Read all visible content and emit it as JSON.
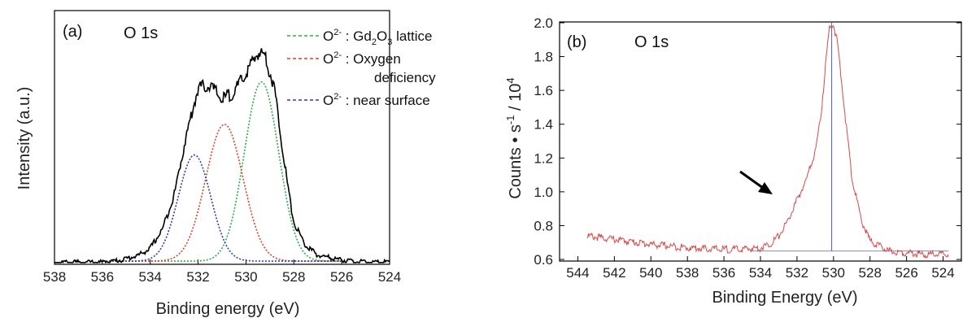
{
  "chart_data": [
    {
      "type": "line",
      "panel": "(a)",
      "title": "O 1s",
      "xlabel": "Binding energy (eV)",
      "ylabel": "Intensity (a.u.)",
      "xlim": [
        538,
        524
      ],
      "x_ticks": [
        "538",
        "536",
        "534",
        "532",
        "530",
        "528",
        "526",
        "524"
      ],
      "y_ticks": [],
      "grid": false,
      "legend_position": "top-right",
      "series": [
        {
          "name": "",
          "color": "#000000",
          "style": "solid",
          "x": [
            538,
            536,
            535.2,
            534.5,
            534,
            533.5,
            533,
            532.5,
            532,
            531.5,
            531,
            530.5,
            530,
            529.5,
            529.2,
            528.8,
            528.5,
            528.2,
            528,
            527.5,
            527,
            526,
            525,
            524
          ],
          "y": [
            0.01,
            0.01,
            0.02,
            0.04,
            0.07,
            0.15,
            0.3,
            0.55,
            0.76,
            0.77,
            0.71,
            0.74,
            0.82,
            0.91,
            0.9,
            0.75,
            0.52,
            0.3,
            0.18,
            0.08,
            0.04,
            0.02,
            0.01,
            0.01
          ]
        },
        {
          "name": "O2- : Gd2O3 lattice",
          "legend_main": "O",
          "legend_sup": "2-",
          "legend_rest": " : Gd",
          "legend_sub1": "2",
          "legend_mid": "O",
          "legend_sub2": "3",
          "legend_tail": " lattice",
          "color": "#2eaa4a",
          "style": "dotted",
          "center": 529.35,
          "sigma": 0.72,
          "amplitude": 0.76
        },
        {
          "name": "O2- : Oxygen deficiency",
          "legend_main": "O",
          "legend_sup": "2-",
          "legend_line1": " : Oxygen",
          "legend_line2": "deficiency",
          "color": "#d8442a",
          "style": "dotted",
          "center": 530.9,
          "sigma": 0.78,
          "amplitude": 0.58
        },
        {
          "name": "O2- : near surface",
          "legend_main": "O",
          "legend_sup": "2-",
          "legend_rest": " : near surface",
          "color": "#2a3fb0",
          "style": "dotted",
          "center": 532.15,
          "sigma": 0.68,
          "amplitude": 0.45
        }
      ]
    },
    {
      "type": "line",
      "panel": "(b)",
      "title": "O 1s",
      "xlabel": "Binding Energy (eV)",
      "ylabel_main": "Counts • s",
      "ylabel_sup1": "-1",
      "ylabel_mid": " / 10",
      "ylabel_sup2": "4",
      "xlim": [
        545,
        523
      ],
      "ylim": [
        0.6,
        2.0
      ],
      "x_ticks": [
        "544",
        "542",
        "540",
        "538",
        "536",
        "534",
        "532",
        "530",
        "528",
        "526",
        "524"
      ],
      "y_ticks": [
        "0.6",
        "0.8",
        "1.0",
        "1.2",
        "1.4",
        "1.6",
        "1.8",
        "2.0"
      ],
      "grid": false,
      "series": [
        {
          "name": "",
          "color": "#d84a4a",
          "style": "solid",
          "x": [
            543.5,
            542,
            540,
            538,
            536,
            535,
            534,
            533.5,
            533,
            532.5,
            532,
            531.5,
            531,
            530.7,
            530.4,
            530.2,
            530.0,
            529.8,
            529.5,
            529.2,
            529,
            528.5,
            528,
            527,
            526,
            525,
            523.7
          ],
          "y": [
            0.75,
            0.73,
            0.7,
            0.68,
            0.67,
            0.67,
            0.68,
            0.7,
            0.75,
            0.84,
            0.96,
            1.08,
            1.25,
            1.45,
            1.8,
            2.0,
            2.0,
            1.9,
            1.6,
            1.3,
            1.1,
            0.85,
            0.72,
            0.66,
            0.65,
            0.64,
            0.64
          ]
        }
      ],
      "baseline": {
        "x_start": 534.5,
        "x_end": 523.7,
        "y": 0.65,
        "color": "#8090b0"
      },
      "peak_marker": {
        "x": 530.1,
        "color": "#5060c0"
      },
      "arrow": {
        "direction": "down-right"
      }
    }
  ]
}
